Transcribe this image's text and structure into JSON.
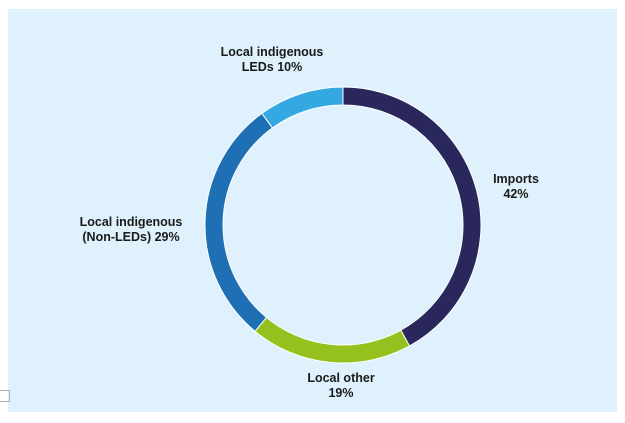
{
  "chart_data": {
    "type": "pie",
    "style": "donut",
    "title": "",
    "background_color": "#dff1fc",
    "slices": [
      {
        "label_lines": [
          "Imports",
          "42%"
        ],
        "value": 42,
        "color": "#29275b"
      },
      {
        "label_lines": [
          "Local other",
          "19%"
        ],
        "value": 19,
        "color": "#95c11f"
      },
      {
        "label_lines": [
          "Local indigenous",
          "(Non-LEDs) 29%"
        ],
        "value": 29,
        "color": "#1f6fb5"
      },
      {
        "label_lines": [
          "Local indigenous",
          "LEDs 10%"
        ],
        "value": 10,
        "color": "#34a9e1"
      }
    ],
    "start_angle_deg": 0,
    "direction": "clockwise"
  }
}
